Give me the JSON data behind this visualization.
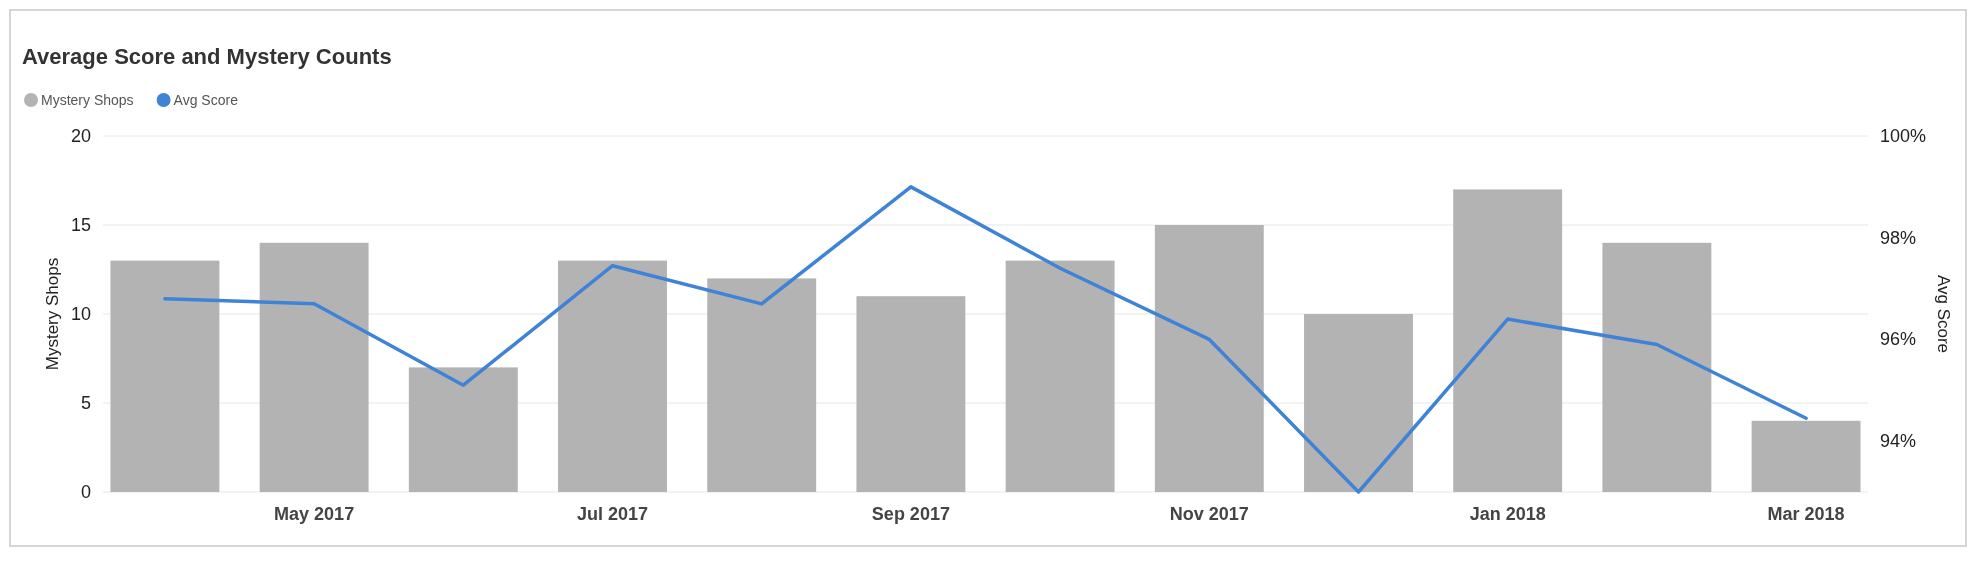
{
  "chart_data": {
    "type": "bar",
    "title": "Average Score and Mystery Counts",
    "categories": [
      null,
      "May 2017",
      null,
      "Jul 2017",
      null,
      "Sep 2017",
      null,
      "Nov 2017",
      null,
      "Jan 2018",
      null,
      "Mar 2018"
    ],
    "series": [
      {
        "name": "Mystery Shops",
        "color": "#b3b3b3",
        "values": [
          13,
          14,
          7,
          13,
          12,
          11,
          13,
          15,
          10,
          17,
          14,
          4
        ]
      },
      {
        "name": "Avg Score",
        "type": "line",
        "axis": "y2",
        "color": "#3f83d6",
        "values": [
          96.8,
          96.7,
          95.1,
          97.45,
          96.7,
          99.0,
          97.4,
          96.0,
          93.0,
          96.4,
          95.9,
          94.45
        ]
      }
    ],
    "ylabel": "Mystery Shops",
    "y2label": "Avg Score",
    "ylim": [
      0,
      20
    ],
    "yticks": [
      0,
      5,
      10,
      15,
      20
    ],
    "y2lim": [
      93,
      100
    ],
    "y2ticks": [
      {
        "value": 94,
        "label": "94%"
      },
      {
        "value": 96,
        "label": "96%"
      },
      {
        "value": 98,
        "label": "98%"
      },
      {
        "value": 100,
        "label": "100%"
      }
    ],
    "grid": "y",
    "legend": "top left",
    "marker": "none",
    "line_style": "solid"
  }
}
